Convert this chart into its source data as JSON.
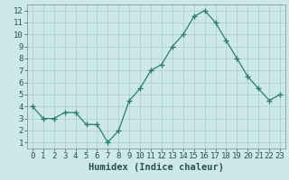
{
  "x": [
    0,
    1,
    2,
    3,
    4,
    5,
    6,
    7,
    8,
    9,
    10,
    11,
    12,
    13,
    14,
    15,
    16,
    17,
    18,
    19,
    20,
    21,
    22,
    23
  ],
  "y": [
    4.0,
    3.0,
    3.0,
    3.5,
    3.5,
    2.5,
    2.5,
    1.0,
    2.0,
    4.5,
    5.5,
    7.0,
    7.5,
    9.0,
    10.0,
    11.5,
    12.0,
    11.0,
    9.5,
    8.0,
    6.5,
    5.5,
    4.5,
    5.0
  ],
  "line_color": "#2e7d6e",
  "marker": "+",
  "marker_size": 4,
  "bg_color": "#cce8e8",
  "grid_color": "#aacccc",
  "xlabel": "Humidex (Indice chaleur)",
  "xlim": [
    -0.5,
    23.5
  ],
  "ylim": [
    0.5,
    12.5
  ],
  "yticks": [
    1,
    2,
    3,
    4,
    5,
    6,
    7,
    8,
    9,
    10,
    11,
    12
  ],
  "xticks": [
    0,
    1,
    2,
    3,
    4,
    5,
    6,
    7,
    8,
    9,
    10,
    11,
    12,
    13,
    14,
    15,
    16,
    17,
    18,
    19,
    20,
    21,
    22,
    23
  ],
  "tick_fontsize": 6.5,
  "label_fontsize": 7.5
}
